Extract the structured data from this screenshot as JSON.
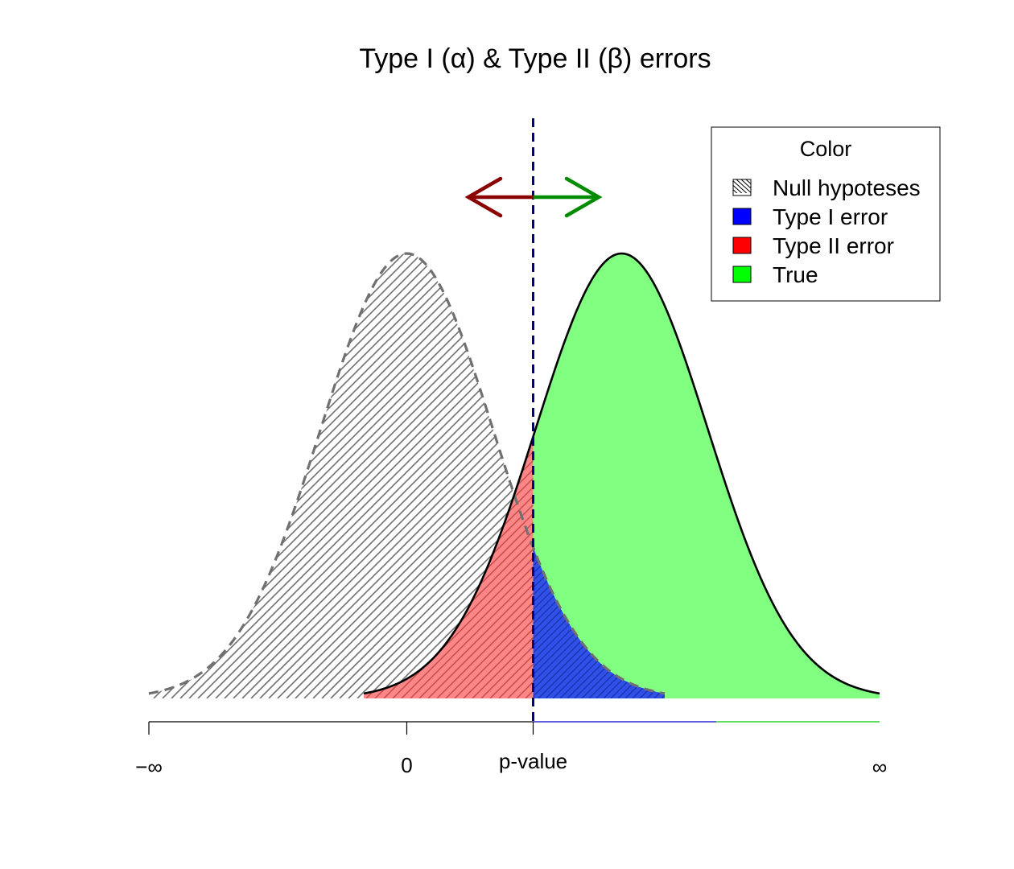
{
  "chart_data": {
    "type": "area",
    "title": "Type I (α) & Type II (β) errors",
    "xlim": [
      -3,
      5.5
    ],
    "ylim": [
      0,
      0.4
    ],
    "x_axis": {
      "ticks": [
        {
          "x": -3,
          "label": "−∞"
        },
        {
          "x": 0,
          "label": "0"
        },
        {
          "x": 1.47,
          "label": "p-value"
        },
        {
          "x": 5.5,
          "label": "∞"
        }
      ]
    },
    "critical_value": 1.47,
    "series": [
      {
        "name": "Null hypoteses",
        "distribution": "normal",
        "mean": 0,
        "sd": 1,
        "x_range": [
          -3,
          3
        ],
        "style": "dashed, hatched",
        "color": "#707070"
      },
      {
        "name": "True",
        "distribution": "normal",
        "mean": 2.5,
        "sd": 1,
        "x_range": [
          -0.5,
          5.5
        ],
        "style": "solid",
        "color": "#80ff80"
      }
    ],
    "regions": [
      {
        "name": "Type II error",
        "color": "#ff8080",
        "x_from": -0.5,
        "x_to": 1.47
      },
      {
        "name": "Type I error",
        "color": "#3050e8",
        "x_from": 1.47,
        "x_to": 3
      },
      {
        "name": "True",
        "color": "#80ff80",
        "x_from": 1.47,
        "x_to": 5.5
      }
    ],
    "arrows": [
      {
        "direction": "left",
        "color": "#8b0000"
      },
      {
        "direction": "right",
        "color": "#008b00"
      }
    ],
    "legend": {
      "position": "top-right",
      "title": "Color",
      "items": [
        {
          "label": "Null hypoteses",
          "swatch": "hatch"
        },
        {
          "label": "Type I error",
          "swatch": "#0000ff"
        },
        {
          "label": "Type II error",
          "swatch": "#ff0000"
        },
        {
          "label": "True",
          "swatch": "#00ff00"
        }
      ]
    }
  }
}
